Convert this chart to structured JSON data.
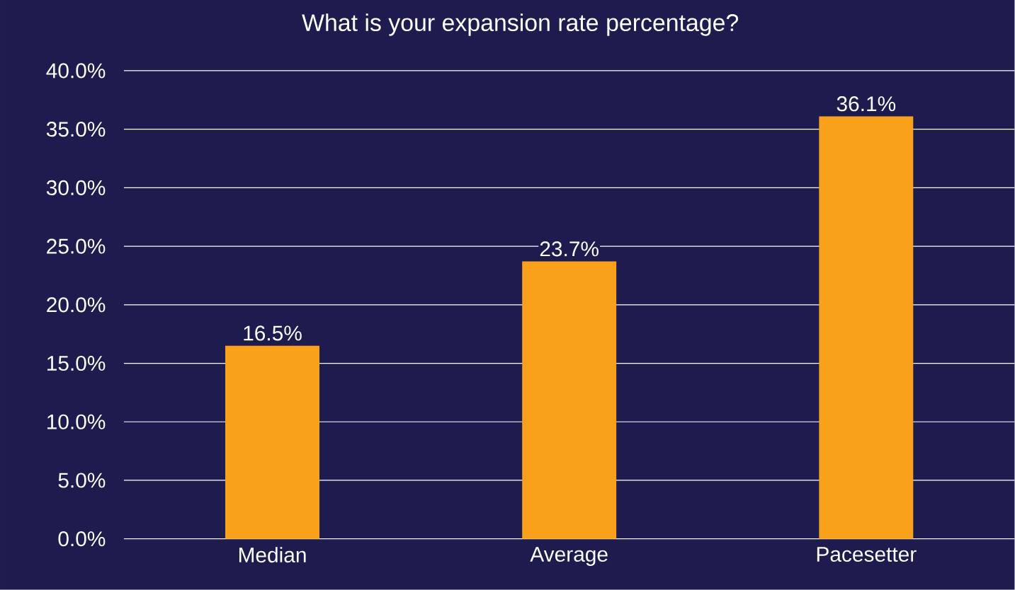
{
  "chart_data": {
    "type": "bar",
    "title": "What is your expansion rate percentage?",
    "categories": [
      "Median",
      "Average",
      "Pacesetter"
    ],
    "values": [
      16.5,
      23.7,
      36.1
    ],
    "value_labels": [
      "16.5%",
      "23.7%",
      "36.1%"
    ],
    "color": "#f9a11b",
    "ylim": [
      0,
      40
    ],
    "yticks": [
      {
        "value": 0,
        "label": "0.0%"
      },
      {
        "value": 5,
        "label": "5.0%"
      },
      {
        "value": 10,
        "label": "10.0%"
      },
      {
        "value": 15,
        "label": "15.0%"
      },
      {
        "value": 20,
        "label": "20.0%"
      },
      {
        "value": 25,
        "label": "25.0%"
      },
      {
        "value": 30,
        "label": "30.0%"
      },
      {
        "value": 35,
        "label": "35.0%"
      },
      {
        "value": 40,
        "label": "40.0%"
      }
    ],
    "grid": "y"
  }
}
